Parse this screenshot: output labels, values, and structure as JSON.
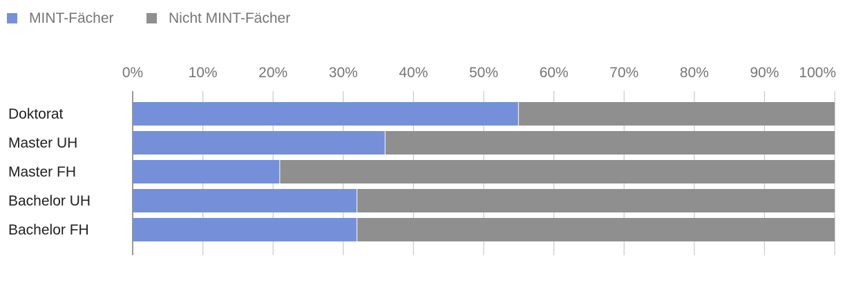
{
  "chart_data": {
    "type": "bar",
    "orientation": "horizontal",
    "stacked": "percent",
    "title": "",
    "xlabel": "",
    "ylabel": "",
    "categories": [
      "Doktorat",
      "Master UH",
      "Master FH",
      "Bachelor UH",
      "Bachelor FH"
    ],
    "series": [
      {
        "name": "MINT-Fächer",
        "color": "#7590d9",
        "values": [
          55,
          36,
          21,
          32,
          32
        ]
      },
      {
        "name": "Nicht MINT-Fächer",
        "color": "#8f8f8f",
        "values": [
          45,
          64,
          79,
          68,
          68
        ]
      }
    ],
    "xlim": [
      0,
      100
    ],
    "x_ticks": [
      "0%",
      "10%",
      "20%",
      "30%",
      "40%",
      "50%",
      "60%",
      "70%",
      "80%",
      "90%",
      "100%"
    ],
    "grid": true,
    "legend_position": "top-left"
  }
}
